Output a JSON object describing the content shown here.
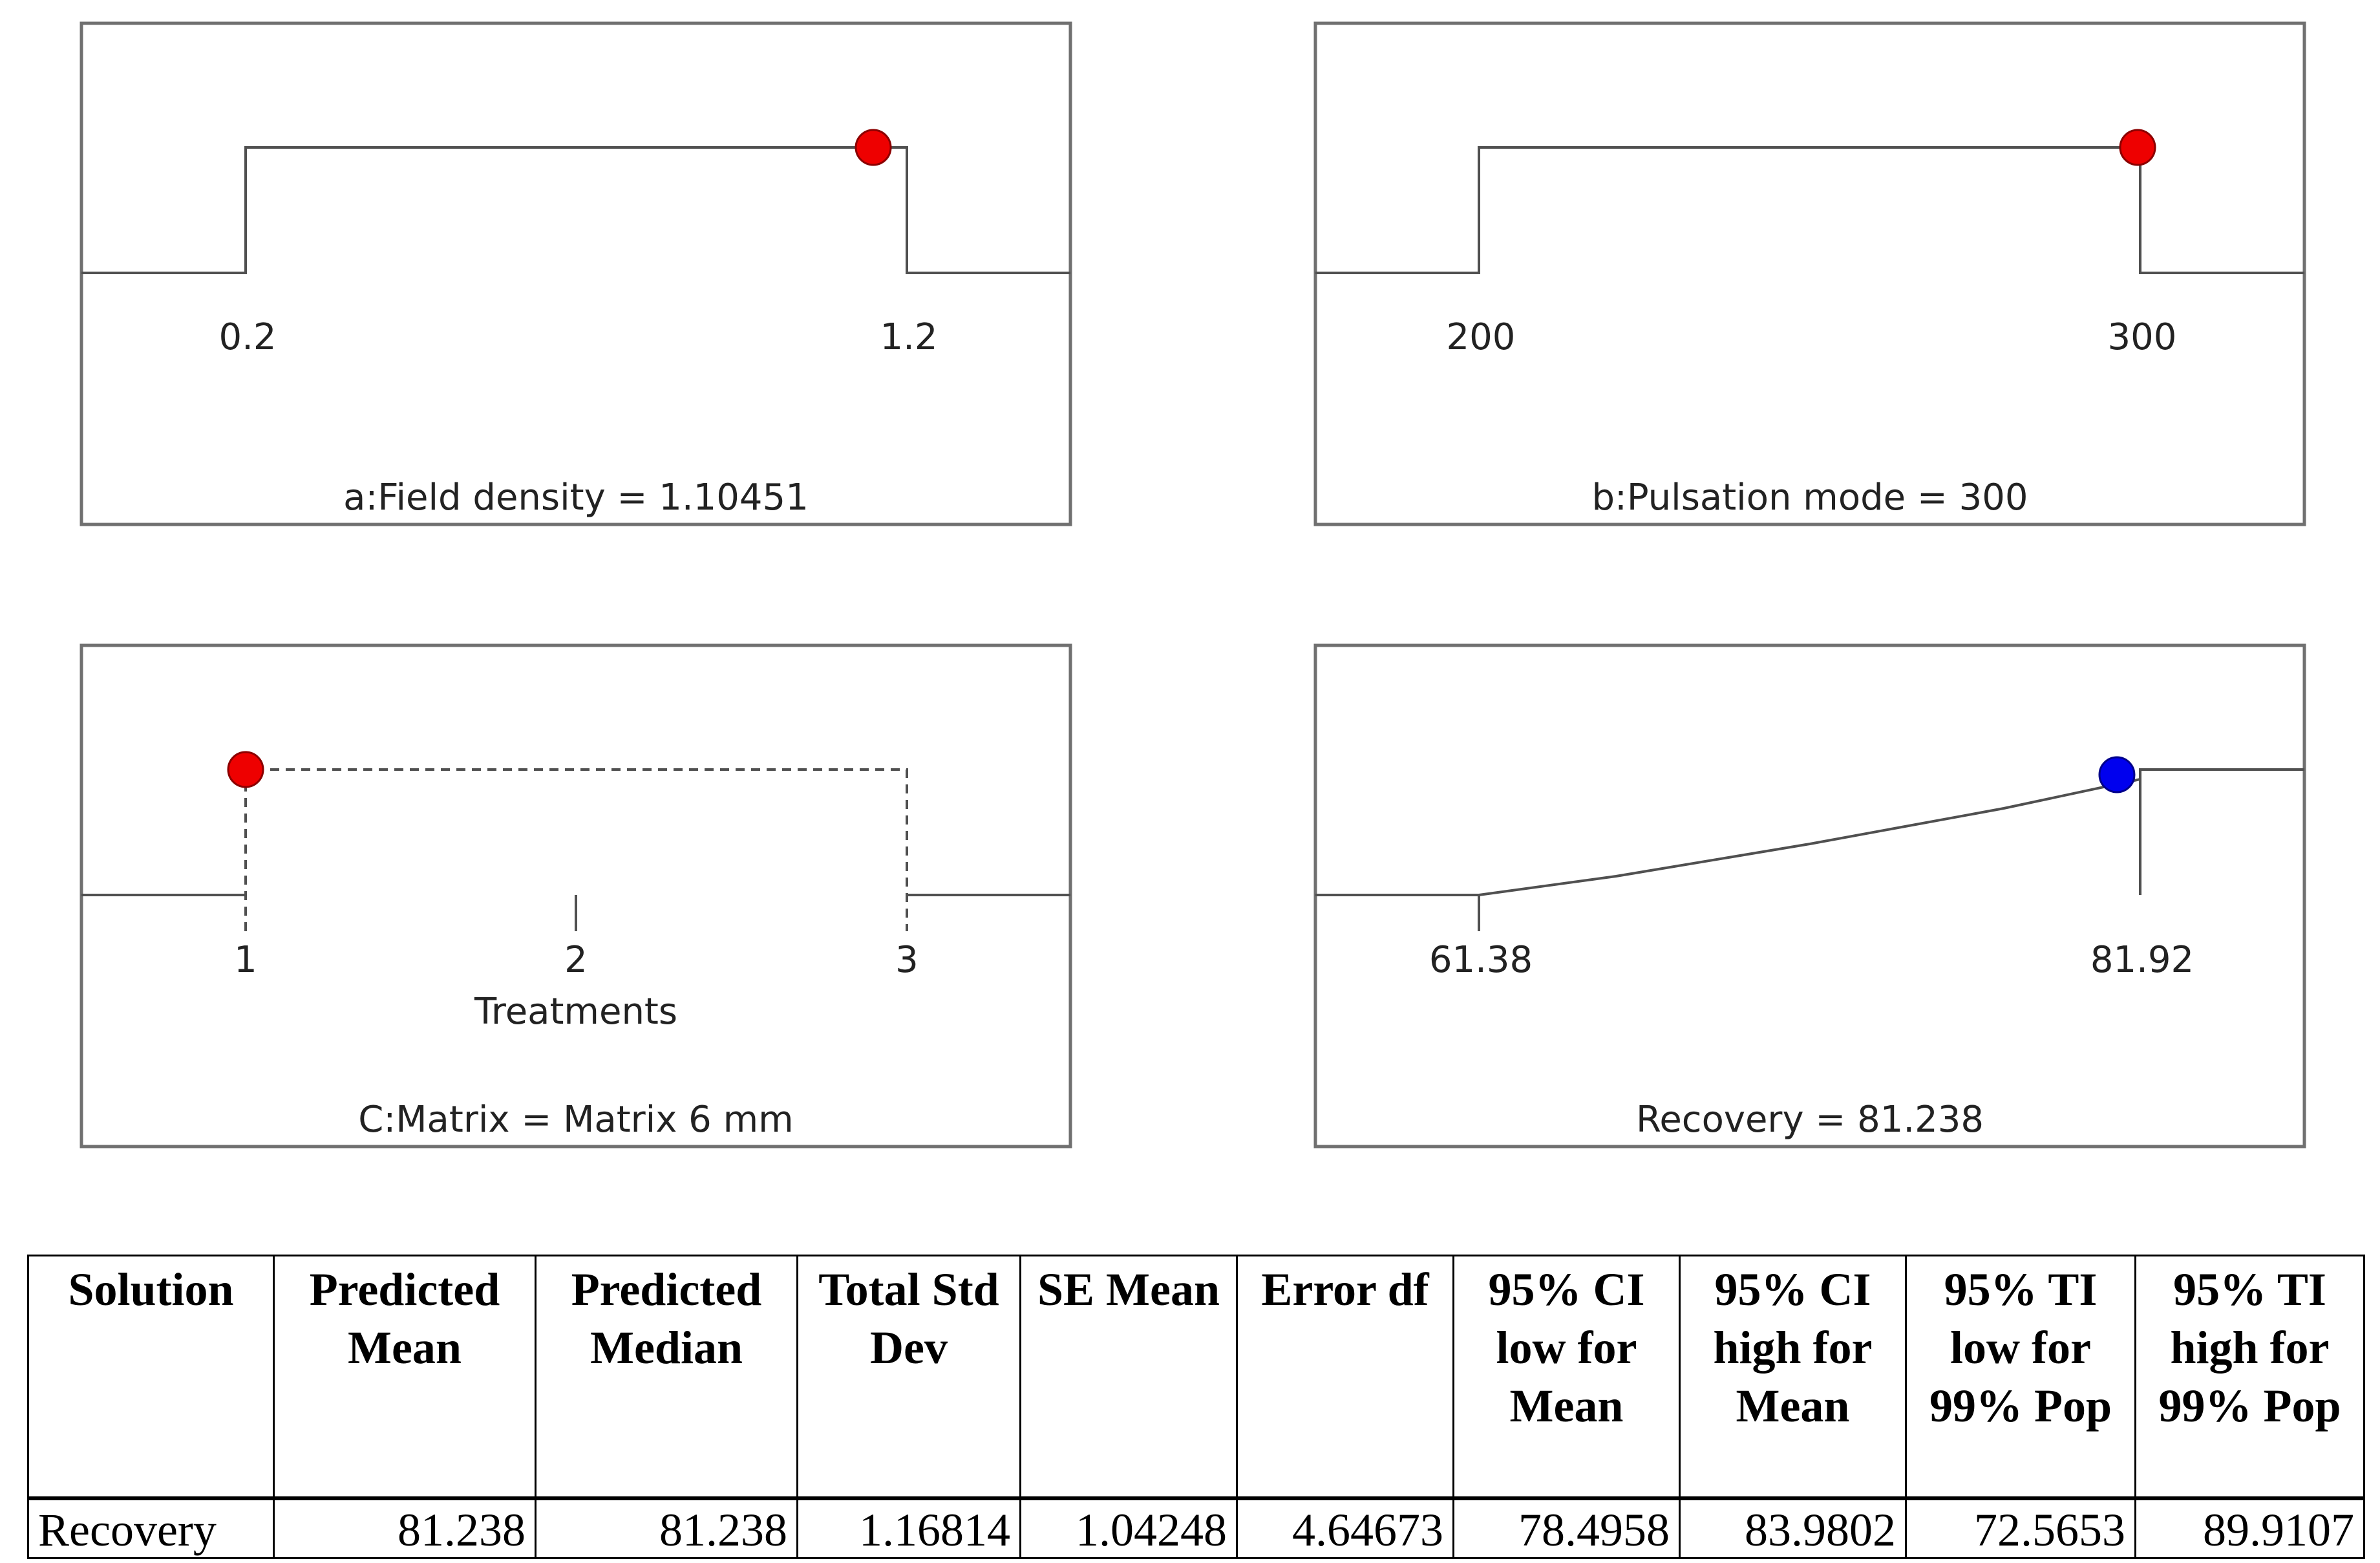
{
  "panels": [
    {
      "type": "factor",
      "min": 0.2,
      "max": 1.2,
      "min_label": "0.2",
      "max_label": "1.2",
      "value": 1.10451,
      "label": "a:Field density = 1.10451",
      "dot_color": "#ee0000",
      "line_style": "solid"
    },
    {
      "type": "factor",
      "min": 200,
      "max": 300,
      "min_label": "200",
      "max_label": "300",
      "value": 300,
      "label": "b:Pulsation mode = 300",
      "dot_color": "#ee0000",
      "line_style": "solid"
    },
    {
      "type": "categorical",
      "levels": [
        "1",
        "2",
        "3"
      ],
      "selected_index": 0,
      "axis_label": "Treatments",
      "label": "C:Matrix = Matrix 6 mm",
      "dot_color": "#ee0000",
      "line_style": "dashed"
    },
    {
      "type": "response",
      "min": 61.38,
      "max": 81.92,
      "min_label": "61.38",
      "max_label": "81.92",
      "value": 81.238,
      "label": "Recovery = 81.238",
      "dot_color": "#0000ee",
      "line_style": "solid"
    }
  ],
  "table": {
    "headers": [
      "Solution",
      "Predicted Mean",
      "Predicted Median",
      "Total Std Dev",
      "SE Mean",
      "Error df",
      "95% CI low for Mean",
      "95% CI high for Mean",
      "95% TI low for 99% Pop",
      "95% TI high for 99% Pop"
    ],
    "rows": [
      [
        "Recovery",
        "81.238",
        "81.238",
        "1.16814",
        "1.04248",
        "4.64673",
        "78.4958",
        "83.9802",
        "72.5653",
        "89.9107"
      ]
    ]
  }
}
